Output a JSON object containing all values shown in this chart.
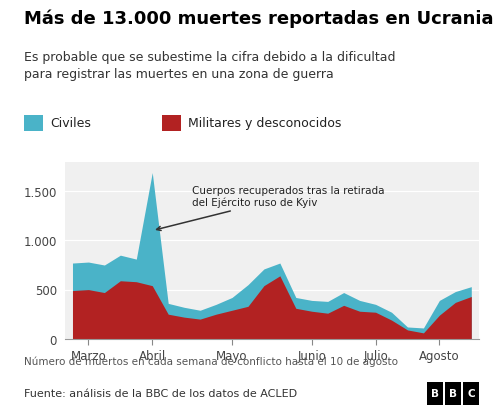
{
  "title": "Más de 13.000 muertes reportadas en Ucrania",
  "subtitle": "Es probable que se subestime la cifra debido a la dificultad\npara registrar las muertes en una zona de guerra",
  "xlabel_note": "Número de muertos en cada semana de conflicto hasta el 10 de agosto",
  "source": "Fuente: análisis de la BBC de los datos de ACLED",
  "legend_civiles": "Civiles",
  "legend_militares": "Militares y desconocidos",
  "annotation": "Cuerpos recuperados tras la retirada\ndel Ejército ruso de Kyiv",
  "color_civiles": "#4ab3c8",
  "color_militares": "#b22222",
  "bg_color": "#f0f0f0",
  "ylim": [
    0,
    1800
  ],
  "yticks": [
    0,
    500,
    1000,
    1500
  ],
  "x_labels": [
    "Marzo",
    "Abril",
    "Mayo",
    "Junio",
    "Julio",
    "Agosto"
  ],
  "weeks": [
    0,
    1,
    2,
    3,
    4,
    5,
    6,
    7,
    8,
    9,
    10,
    11,
    12,
    13,
    14,
    15,
    16,
    17,
    18,
    19,
    20,
    21,
    22,
    23,
    24,
    25
  ],
  "civiles": [
    280,
    280,
    280,
    260,
    230,
    1150,
    110,
    100,
    90,
    100,
    130,
    220,
    170,
    130,
    110,
    110,
    120,
    130,
    110,
    80,
    80,
    30,
    50,
    150,
    110,
    100
  ],
  "militares": [
    490,
    500,
    470,
    590,
    580,
    540,
    250,
    220,
    200,
    250,
    290,
    330,
    540,
    640,
    310,
    280,
    260,
    340,
    280,
    270,
    190,
    90,
    60,
    240,
    370,
    430
  ],
  "x_tick_positions": [
    1,
    5,
    10,
    15,
    19,
    23
  ],
  "title_fontsize": 13,
  "subtitle_fontsize": 9,
  "tick_fontsize": 8.5,
  "note_fontsize": 7.5,
  "source_fontsize": 8
}
